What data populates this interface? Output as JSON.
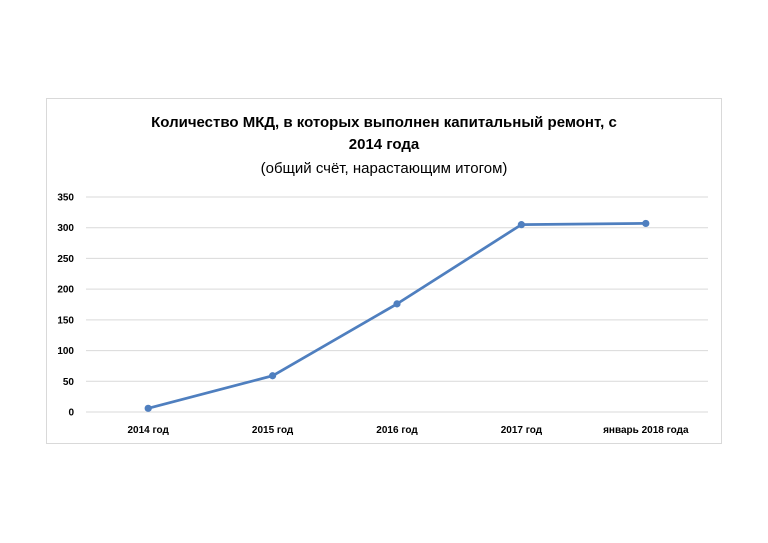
{
  "chart_data": {
    "type": "line",
    "title_line1": "Количество МКД, в которых выполнен капитальный ремонт, с",
    "title_line2": "2014 года",
    "subtitle": "(общий счёт, нарастающим итогом)",
    "categories": [
      "2014 год",
      "2015 год",
      "2016 год",
      "2017 год",
      "январь 2018 года"
    ],
    "series": [
      {
        "values": [
          6,
          59,
          176,
          305,
          307
        ]
      }
    ],
    "yticks": [
      0,
      50,
      100,
      150,
      200,
      250,
      300,
      350
    ],
    "ylim": [
      0,
      350
    ],
    "grid": true,
    "legend": "none",
    "line_color": "#4f7fbf",
    "grid_color": "#d9d9d9"
  }
}
